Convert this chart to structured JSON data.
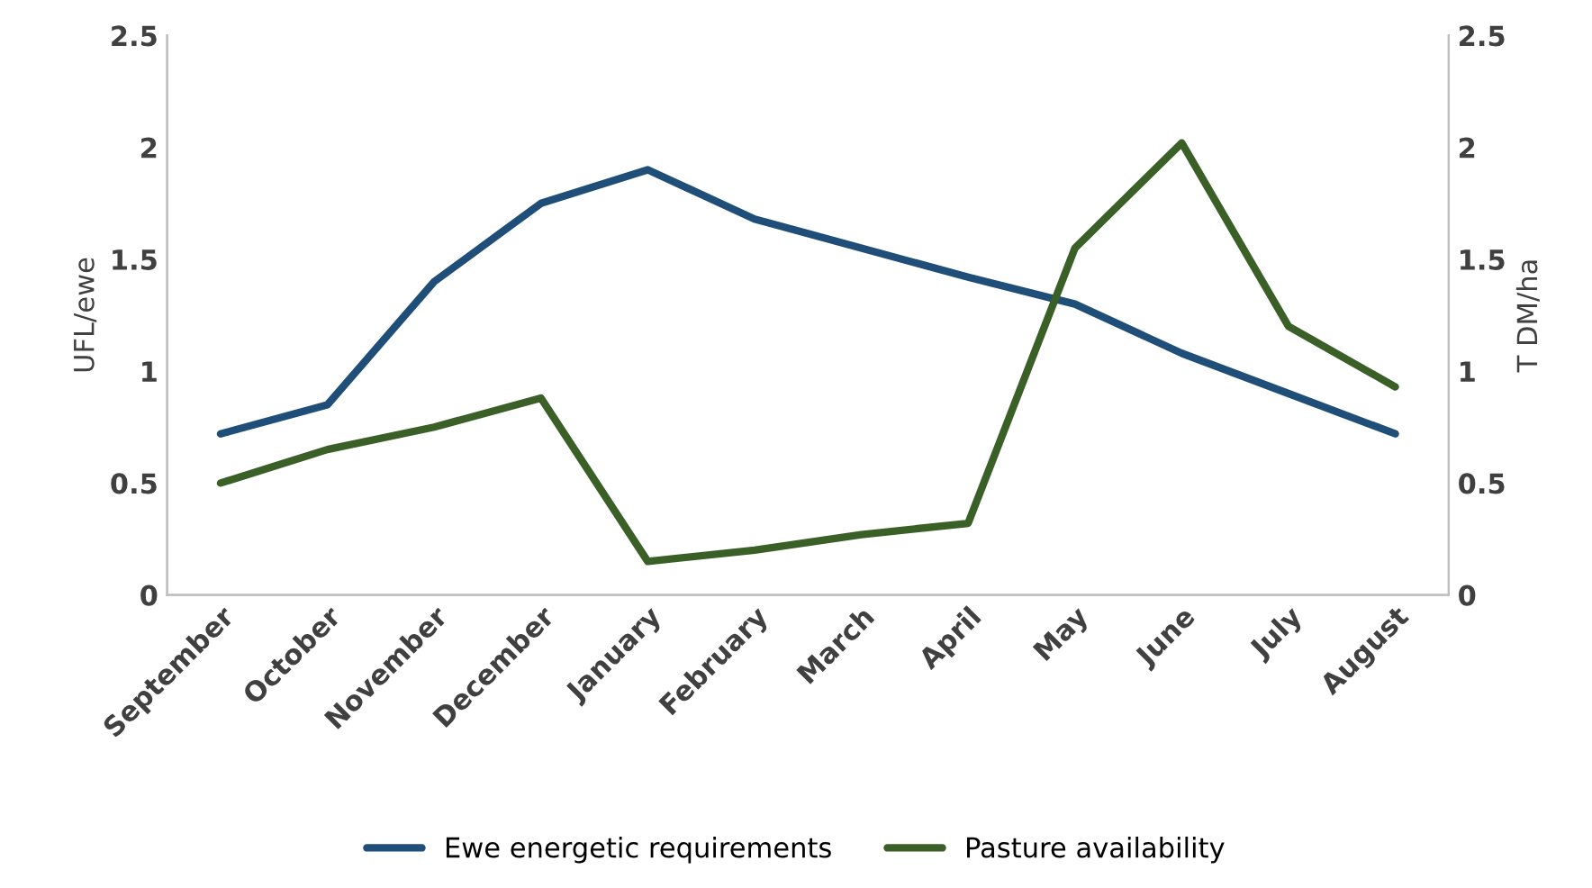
{
  "chart_data": {
    "type": "line",
    "ylabel": "UFL/ewe",
    "y2label": "T DM/ha",
    "categories": [
      "September",
      "October",
      "November",
      "December",
      "January",
      "February",
      "March",
      "April",
      "May",
      "June",
      "July",
      "August"
    ],
    "series": [
      {
        "name": "Ewe energetic requirements",
        "color": "#1f4e79",
        "values": [
          0.72,
          0.85,
          1.4,
          1.75,
          1.9,
          1.68,
          1.55,
          1.42,
          1.3,
          1.08,
          0.9,
          0.72
        ]
      },
      {
        "name": "Pasture availability",
        "color": "#3a5f27",
        "axis": "y2",
        "values": [
          0.5,
          0.65,
          0.75,
          0.88,
          0.15,
          0.2,
          0.27,
          0.32,
          1.55,
          2.02,
          1.2,
          0.93
        ]
      }
    ],
    "ylim": [
      0,
      2.5
    ],
    "yticks": [
      0,
      0.5,
      1,
      1.5,
      2,
      2.5
    ],
    "y2lim": [
      0,
      2.5
    ],
    "y2ticks": [
      0,
      0.5,
      1,
      1.5,
      2,
      2.5
    ],
    "grid": false,
    "legend": "bottom",
    "line_style": "solid",
    "marker": "none"
  }
}
